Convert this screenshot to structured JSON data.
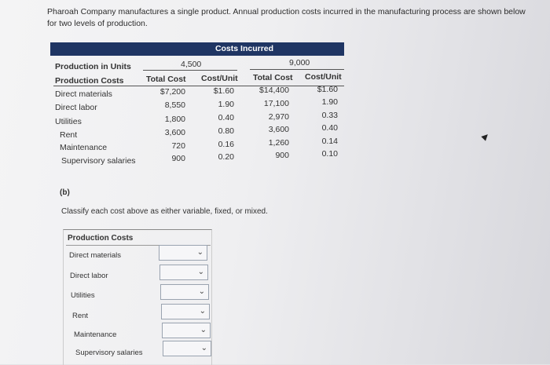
{
  "intro_text": "Pharoah Company manufactures a single product. Annual production costs incurred in the manufacturing process are shown below for two levels of production.",
  "table": {
    "banner": "Costs Incurred",
    "row_header_1": "Production in Units",
    "row_header_2": "Production Costs",
    "level_1": "4,500",
    "level_2": "9,000",
    "col_total": "Total Cost",
    "col_unit": "Cost/Unit",
    "rows": [
      {
        "label": "Direct materials",
        "t1": "$7,200",
        "u1": "$1.60",
        "t2": "$14,400",
        "u2": "$1.60"
      },
      {
        "label": "Direct labor",
        "t1": "8,550",
        "u1": "1.90",
        "t2": "17,100",
        "u2": "1.90"
      },
      {
        "label": "Utilities",
        "t1": "1,800",
        "u1": "0.40",
        "t2": "2,970",
        "u2": "0.33"
      },
      {
        "label": "Rent",
        "t1": "3,600",
        "u1": "0.80",
        "t2": "3,600",
        "u2": "0.40"
      },
      {
        "label": "Maintenance",
        "t1": "720",
        "u1": "0.16",
        "t2": "1,260",
        "u2": "0.14"
      },
      {
        "label": "Supervisory salaries",
        "t1": "900",
        "u1": "0.20",
        "t2": "900",
        "u2": "0.10"
      }
    ]
  },
  "part_b": {
    "label": "(b)",
    "instruction": "Classify each cost above as either variable, fixed, or mixed.",
    "header": "Production Costs",
    "items": [
      "Direct materials",
      "Direct labor",
      "Utilities",
      "Rent",
      "Maintenance",
      "Supervisory salaries"
    ],
    "selected": [
      "",
      "",
      "",
      "",
      "",
      ""
    ]
  },
  "icons": {
    "dropdown": "chevron-down-icon",
    "cursor": "mouse-pointer-icon"
  }
}
